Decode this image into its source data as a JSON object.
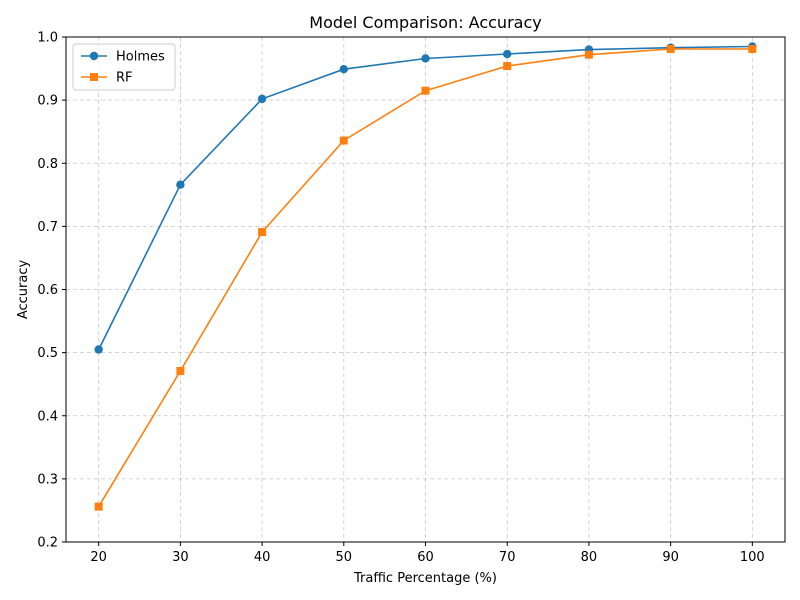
{
  "chart_data": {
    "type": "line",
    "title": "Model Comparison: Accuracy",
    "xlabel": "Traffic Percentage (%)",
    "ylabel": "Accuracy",
    "x": [
      20,
      30,
      40,
      50,
      60,
      70,
      80,
      90,
      100
    ],
    "xticks": [
      "20",
      "30",
      "40",
      "50",
      "60",
      "70",
      "80",
      "90",
      "100"
    ],
    "yticks": [
      "0.2",
      "0.3",
      "0.4",
      "0.5",
      "0.6",
      "0.7",
      "0.8",
      "0.9",
      "1.0"
    ],
    "xlim": [
      16,
      104
    ],
    "ylim": [
      0.2,
      1.0
    ],
    "grid": true,
    "legend_position": "top-left",
    "series": [
      {
        "name": "Holmes",
        "color": "#1f77b4",
        "marker": "circle",
        "values": [
          0.505,
          0.766,
          0.902,
          0.949,
          0.966,
          0.973,
          0.98,
          0.983,
          0.985
        ]
      },
      {
        "name": "RF",
        "color": "#ff7f0e",
        "marker": "square",
        "values": [
          0.256,
          0.471,
          0.691,
          0.836,
          0.915,
          0.954,
          0.972,
          0.981,
          0.981
        ]
      }
    ]
  }
}
